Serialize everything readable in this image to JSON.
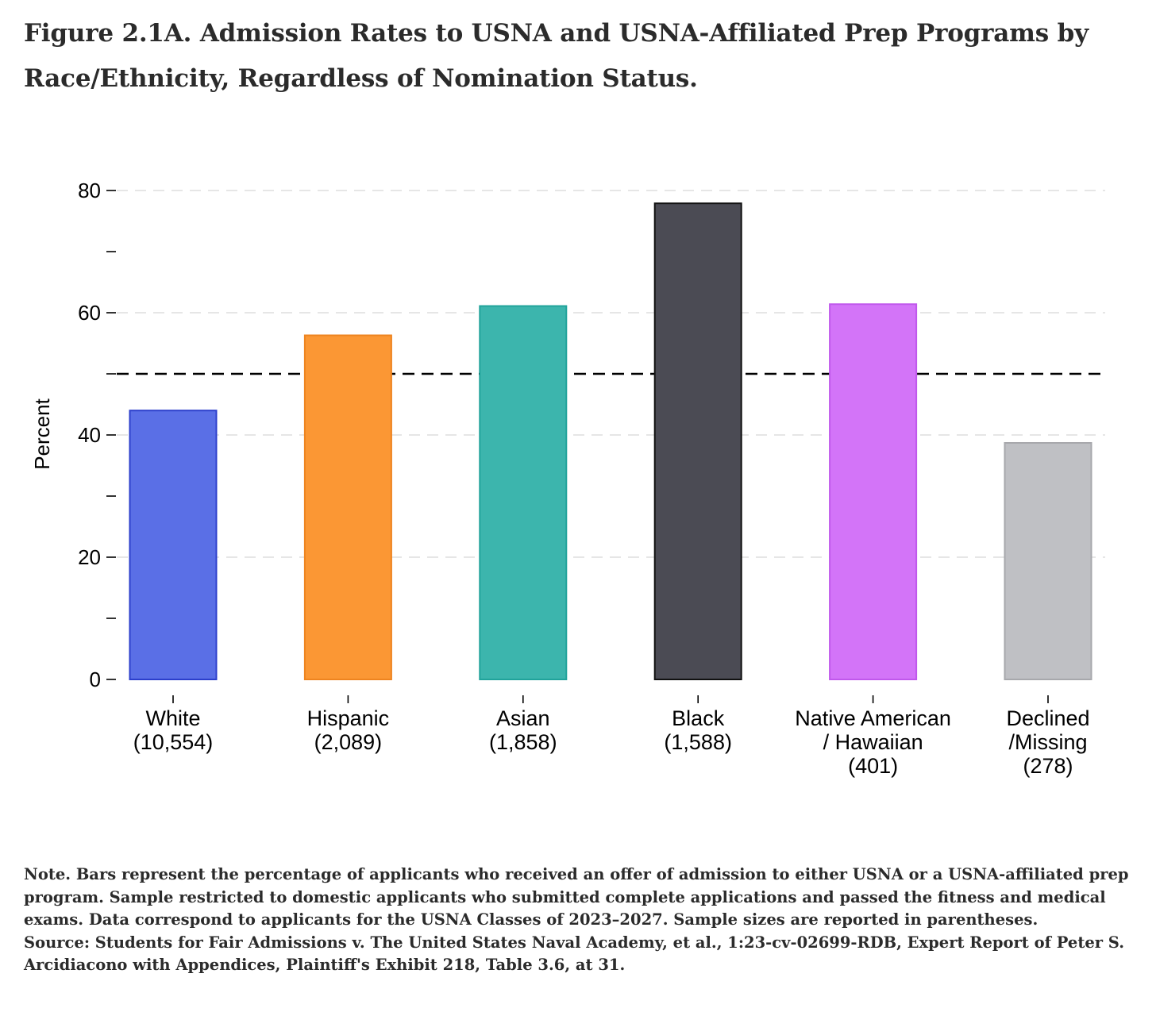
{
  "figure": {
    "title": "Figure 2.1A. Admission Rates to USNA and USNA-Affiliated Prep Programs by Race/Ethnicity, Regardless of Nomination Status.",
    "note": "Note. Bars represent the percentage of applicants who received an offer of admission to either USNA or a USNA-affiliated prep program. Sample restricted to domestic applicants who submitted complete applications and passed the fitness and medical exams. Data correspond to applicants for the USNA Classes of 2023–2027. Sample sizes are reported in parentheses.",
    "source": "Source: Students for Fair Admissions v. The United States Naval Academy, et al., 1:23-cv-02699-RDB, Expert Report of Peter S. Arcidiacono with Appendices, Plaintiff's Exhibit 218, Table 3.6, at 31."
  },
  "chart_data": {
    "type": "bar",
    "title": "",
    "xlabel": "",
    "ylabel": "Percent",
    "ylim": [
      0,
      80
    ],
    "yticks": [
      0,
      20,
      40,
      60,
      80
    ],
    "minor_yticks": [
      10,
      30,
      50,
      70
    ],
    "grid": true,
    "reference_line": {
      "value": 50,
      "style": "dashed",
      "color": "#000000"
    },
    "categories": [
      [
        "White",
        "(10,554)"
      ],
      [
        "Hispanic",
        "(2,089)"
      ],
      [
        "Asian",
        "(1,858)"
      ],
      [
        "Black",
        "(1,588)"
      ],
      [
        "Native American",
        "/ Hawaiian",
        "(401)"
      ],
      [
        "Declined",
        "/Missing",
        "(278)"
      ]
    ],
    "values": [
      44,
      56.3,
      61.1,
      77.9,
      61.4,
      38.7
    ],
    "colors": [
      "#5a6fe6",
      "#fb9734",
      "#3cb5ad",
      "#4b4b54",
      "#d374f8",
      "#bfc0c4"
    ],
    "border_colors": [
      "#2c3fcc",
      "#ee8420",
      "#21a39b",
      "#111111",
      "#c058ec",
      "#a7a8ac"
    ]
  }
}
